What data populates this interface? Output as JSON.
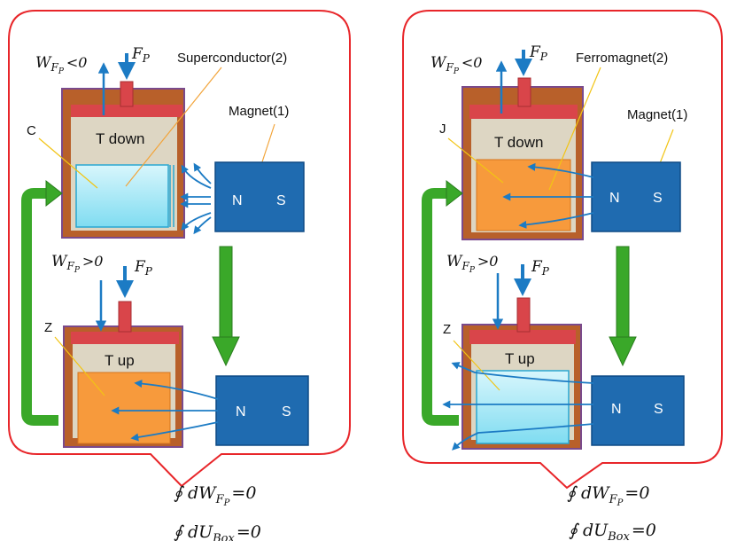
{
  "colors": {
    "bubble": "#e8262a",
    "piston": "#d9454a",
    "cylinder": "#b8602a",
    "cylinder_outline": "#7a4a8c",
    "gas": "#ddd6c3",
    "sample_orange": "#f79a3c",
    "sample_blue": "#9ee6f5",
    "magnet": "#1f6bb0",
    "arrow_blue": "#1c7bc4",
    "arrow_green": "#3aa829",
    "pointer_line": "#f2c414"
  },
  "left": {
    "work_top": "W",
    "work_top_sub": "F",
    "work_top_subsub": "P",
    "work_top_rel": "<0",
    "force_top": "F",
    "force_top_sub": "P",
    "material_label": "Superconductor(2)",
    "magnet_label": "Magnet(1)",
    "top_sample_letter": "C",
    "top_gas_label": "T down",
    "work_bottom": "W",
    "work_bottom_sub": "F",
    "work_bottom_subsub": "P",
    "work_bottom_rel": ">0",
    "force_bottom": "F",
    "force_bottom_sub": "P",
    "bottom_sample_letter": "Z",
    "bottom_gas_label": "T up",
    "magnet_top_n": "N",
    "magnet_top_s": "S",
    "magnet_bottom_n": "N",
    "magnet_bottom_s": "S"
  },
  "right": {
    "work_top": "W",
    "work_top_sub": "F",
    "work_top_subsub": "P",
    "work_top_rel": "<0",
    "force_top": "F",
    "force_top_sub": "P",
    "material_label": "Ferromagnet(2)",
    "magnet_label": "Magnet(1)",
    "top_sample_letter": "J",
    "top_gas_label": "T down",
    "work_bottom": "W",
    "work_bottom_sub": "F",
    "work_bottom_subsub": "P",
    "work_bottom_rel": ">0",
    "force_bottom": "F",
    "force_bottom_sub": "P",
    "bottom_sample_letter": "Z",
    "bottom_gas_label": "T up",
    "magnet_top_n": "N",
    "magnet_top_s": "S",
    "magnet_bottom_n": "N",
    "magnet_bottom_s": "S"
  },
  "equations": {
    "left_work": "∮ dW",
    "left_work_sub": "F",
    "left_work_subsub": "P",
    "left_work_eq": "=0",
    "left_energy": "∮ dU",
    "left_energy_sub": "Box",
    "left_energy_eq": "=0",
    "right_work": "∮ dW",
    "right_work_sub": "F",
    "right_work_subsub": "P",
    "right_work_eq": "=0",
    "right_energy": "∮ dU",
    "right_energy_sub": "Box",
    "right_energy_eq": "=0"
  }
}
